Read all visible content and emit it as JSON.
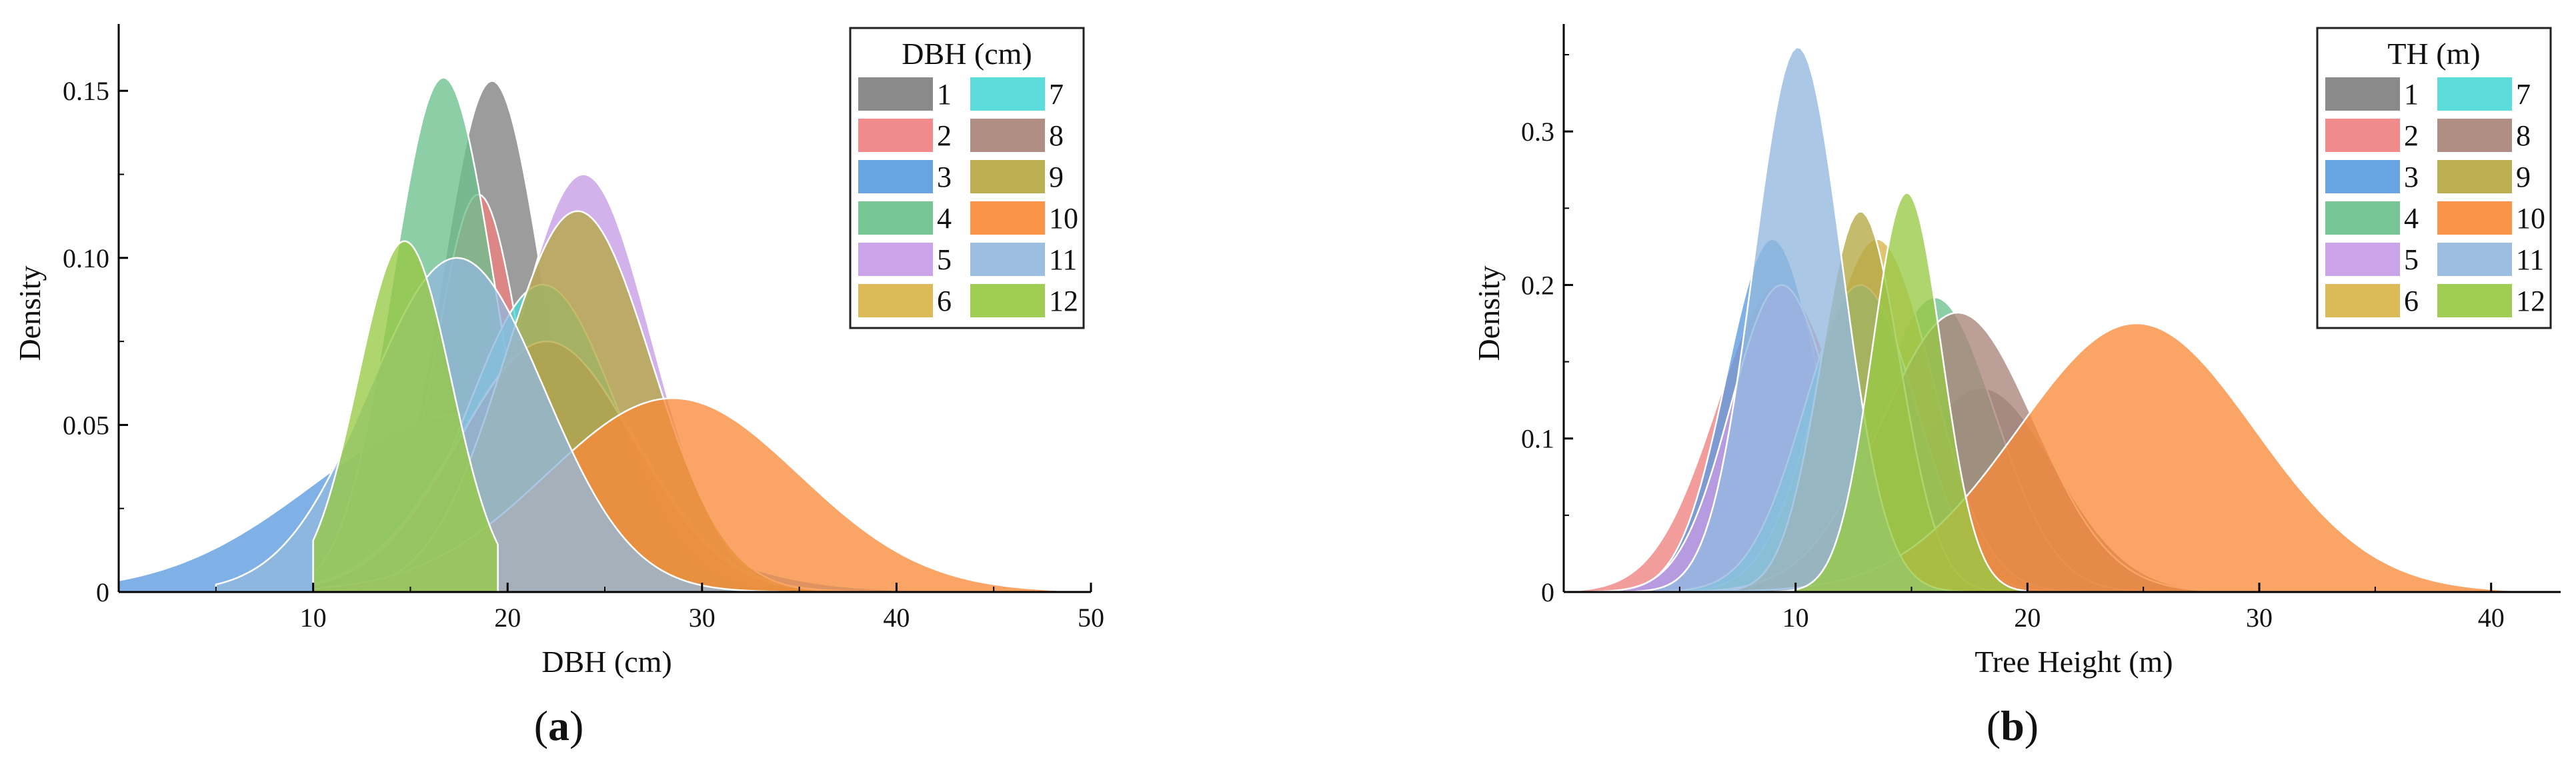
{
  "panels": [
    {
      "id": "a",
      "panel_label_open": "(",
      "panel_label_letter": "a",
      "panel_label_close": ")",
      "legend_title": "DBH (cm)",
      "chart_data": {
        "type": "area",
        "description": "Normal density curves of DBH for 12 groups",
        "title": "",
        "xlabel": "DBH (cm)",
        "ylabel": "Density",
        "xlim": [
          0,
          50
        ],
        "ylim": [
          0,
          0.17
        ],
        "xticks": [
          10,
          20,
          30,
          40,
          50
        ],
        "yticks": [
          0,
          0.05,
          0.1,
          0.15
        ],
        "ytick_labels": [
          "0",
          "0.05",
          "0.10",
          "0.15"
        ],
        "legend_title": "DBH (cm)",
        "legend_position": "top-right",
        "series": [
          {
            "name": "1",
            "color": "#808080",
            "mean": 19.2,
            "sd": 2.6,
            "peak": 0.153,
            "xmin": 10,
            "xmax": 50
          },
          {
            "name": "2",
            "color": "#F08080",
            "mean": 18.5,
            "sd": 2.2,
            "peak": 0.119,
            "xmin": 10,
            "xmax": 50
          },
          {
            "name": "3",
            "color": "#5B9BE0",
            "mean": 17.5,
            "sd": 7.5,
            "peak": 0.053,
            "xmin": 0,
            "xmax": 50
          },
          {
            "name": "4",
            "color": "#6CC08D",
            "mean": 16.7,
            "sd": 2.6,
            "peak": 0.154,
            "xmin": 10,
            "xmax": 50
          },
          {
            "name": "5",
            "color": "#C79BE6",
            "mean": 23.9,
            "sd": 3.5,
            "peak": 0.125,
            "xmin": 10,
            "xmax": 50
          },
          {
            "name": "6",
            "color": "#D9B44A",
            "mean": 22.0,
            "sd": 4.6,
            "peak": 0.075,
            "xmin": 10,
            "xmax": 50
          },
          {
            "name": "7",
            "color": "#4FD9D9",
            "mean": 21.8,
            "sd": 3.8,
            "peak": 0.092,
            "xmin": 10,
            "xmax": 50
          },
          {
            "name": "8",
            "color": "#A9847A",
            "mean": 22.0,
            "sd": 4.5,
            "peak": 0.075,
            "xmin": 10,
            "xmax": 50
          },
          {
            "name": "9",
            "color": "#B5A842",
            "mean": 23.6,
            "sd": 3.8,
            "peak": 0.114,
            "xmin": 10,
            "xmax": 50
          },
          {
            "name": "10",
            "color": "#F88B3A",
            "mean": 28.5,
            "sd": 6.5,
            "peak": 0.058,
            "xmin": 10,
            "xmax": 50
          },
          {
            "name": "11",
            "color": "#92B9DE",
            "mean": 17.4,
            "sd": 4.5,
            "peak": 0.1,
            "xmin": 5,
            "xmax": 50
          },
          {
            "name": "12",
            "color": "#97C945",
            "mean": 14.7,
            "sd": 2.4,
            "peak": 0.105,
            "xmin": 10,
            "xmax": 19.5
          }
        ]
      }
    },
    {
      "id": "b",
      "panel_label_open": "(",
      "panel_label_letter": "b",
      "panel_label_close": ")",
      "legend_title": "TH (m)",
      "chart_data": {
        "type": "area",
        "description": "Normal density curves of tree height for 12 groups",
        "title": "",
        "xlabel": "Tree Height (m)",
        "ylabel": "Density",
        "xlim": [
          0,
          43
        ],
        "ylim": [
          0,
          0.37
        ],
        "xticks": [
          10,
          20,
          30,
          40
        ],
        "yticks": [
          0,
          0.1,
          0.2,
          0.3
        ],
        "ytick_labels": [
          "0",
          "0.1",
          "0.2",
          "0.3"
        ],
        "legend_title": "TH (m)",
        "legend_position": "top-right",
        "series": [
          {
            "name": "1",
            "color": "#808080",
            "mean": 18.0,
            "sd": 3.2,
            "peak": 0.133,
            "xmin": 0,
            "xmax": 43
          },
          {
            "name": "2",
            "color": "#F08080",
            "mean": 9.3,
            "sd": 2.7,
            "peak": 0.2,
            "xmin": 0,
            "xmax": 43
          },
          {
            "name": "3",
            "color": "#5B9BE0",
            "mean": 9.0,
            "sd": 2.0,
            "peak": 0.23,
            "xmin": 0,
            "xmax": 43
          },
          {
            "name": "4",
            "color": "#6CC08D",
            "mean": 16.0,
            "sd": 2.6,
            "peak": 0.192,
            "xmin": 0,
            "xmax": 43
          },
          {
            "name": "5",
            "color": "#C79BE6",
            "mean": 9.4,
            "sd": 2.2,
            "peak": 0.2,
            "xmin": 0,
            "xmax": 43
          },
          {
            "name": "6",
            "color": "#D9B44A",
            "mean": 13.5,
            "sd": 2.4,
            "peak": 0.23,
            "xmin": 0,
            "xmax": 43
          },
          {
            "name": "7",
            "color": "#4FD9D9",
            "mean": 12.8,
            "sd": 2.4,
            "peak": 0.2,
            "xmin": 0,
            "xmax": 43
          },
          {
            "name": "8",
            "color": "#A9847A",
            "mean": 17.0,
            "sd": 3.3,
            "peak": 0.182,
            "xmin": 0,
            "xmax": 43
          },
          {
            "name": "9",
            "color": "#B5A842",
            "mean": 12.8,
            "sd": 1.7,
            "peak": 0.248,
            "xmin": 0,
            "xmax": 43
          },
          {
            "name": "10",
            "color": "#F88B3A",
            "mean": 24.7,
            "sd": 5.1,
            "peak": 0.175,
            "xmin": 0,
            "xmax": 43
          },
          {
            "name": "11",
            "color": "#92B9DE",
            "mean": 10.1,
            "sd": 1.9,
            "peak": 0.355,
            "xmin": 0,
            "xmax": 43
          },
          {
            "name": "12",
            "color": "#97C945",
            "mean": 14.8,
            "sd": 1.5,
            "peak": 0.26,
            "xmin": 0,
            "xmax": 20
          }
        ]
      }
    }
  ]
}
